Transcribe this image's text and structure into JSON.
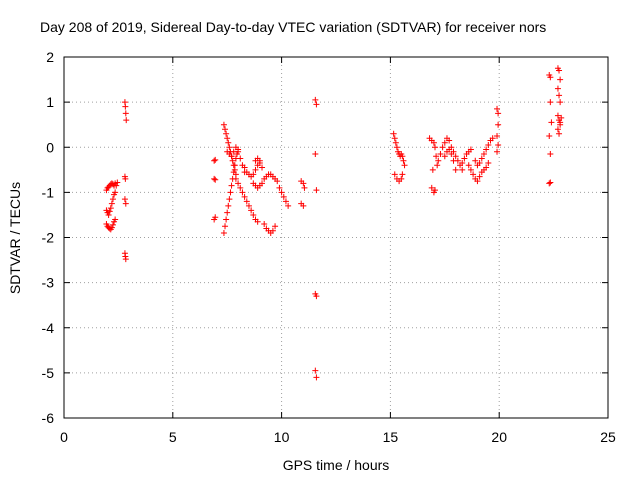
{
  "chart_data": {
    "type": "scatter",
    "title": "Day 208 of 2019, Sidereal Day-to-day VTEC variation (SDTVAR) for receiver nors",
    "xlabel": "GPS time / hours",
    "ylabel": "SDTVAR / TECUs",
    "xlim": [
      0,
      25
    ],
    "ylim": [
      -6,
      2
    ],
    "xticks": [
      0,
      5,
      10,
      15,
      20,
      25
    ],
    "yticks": [
      -6,
      -5,
      -4,
      -3,
      -2,
      -1,
      0,
      1,
      2
    ],
    "xtick_labels": [
      "0",
      "5",
      "10",
      "15",
      "20",
      "25"
    ],
    "ytick_labels": [
      "-6",
      "-5",
      "-4",
      "-3",
      "-2",
      "-1",
      "0",
      "1",
      "2"
    ],
    "grid": true,
    "marker": "plus",
    "color": "#ff0000",
    "series": [
      {
        "name": "SDTVAR",
        "points": [
          [
            1.95,
            -0.95
          ],
          [
            2.0,
            -0.9
          ],
          [
            2.05,
            -0.88
          ],
          [
            2.1,
            -0.85
          ],
          [
            2.15,
            -0.82
          ],
          [
            2.2,
            -0.8
          ],
          [
            2.25,
            -0.82
          ],
          [
            2.3,
            -0.85
          ],
          [
            2.35,
            -0.8
          ],
          [
            1.95,
            -1.4
          ],
          [
            2.0,
            -1.45
          ],
          [
            2.05,
            -1.5
          ],
          [
            2.1,
            -1.42
          ],
          [
            2.15,
            -1.35
          ],
          [
            2.2,
            -1.25
          ],
          [
            2.25,
            -1.15
          ],
          [
            2.3,
            -1.05
          ],
          [
            2.35,
            -1.0
          ],
          [
            2.4,
            -0.85
          ],
          [
            2.45,
            -0.78
          ],
          [
            1.95,
            -1.7
          ],
          [
            2.0,
            -1.75
          ],
          [
            2.05,
            -1.78
          ],
          [
            2.1,
            -1.8
          ],
          [
            2.15,
            -1.82
          ],
          [
            2.2,
            -1.78
          ],
          [
            2.25,
            -1.72
          ],
          [
            2.3,
            -1.65
          ],
          [
            2.35,
            -1.6
          ],
          [
            2.8,
            1.0
          ],
          [
            2.82,
            0.9
          ],
          [
            2.84,
            0.75
          ],
          [
            2.86,
            0.6
          ],
          [
            2.8,
            -0.65
          ],
          [
            2.82,
            -0.7
          ],
          [
            2.8,
            -1.15
          ],
          [
            2.84,
            -1.25
          ],
          [
            2.8,
            -2.35
          ],
          [
            2.82,
            -2.42
          ],
          [
            2.84,
            -2.48
          ],
          [
            6.9,
            -0.3
          ],
          [
            6.95,
            -0.28
          ],
          [
            6.9,
            -0.7
          ],
          [
            6.95,
            -0.72
          ],
          [
            6.9,
            -1.6
          ],
          [
            6.95,
            -1.55
          ],
          [
            7.35,
            0.5
          ],
          [
            7.4,
            0.4
          ],
          [
            7.45,
            0.3
          ],
          [
            7.5,
            0.2
          ],
          [
            7.55,
            0.1
          ],
          [
            7.6,
            0.0
          ],
          [
            7.65,
            -0.1
          ],
          [
            7.7,
            -0.2
          ],
          [
            7.75,
            -0.3
          ],
          [
            7.8,
            -0.4
          ],
          [
            7.85,
            -0.5
          ],
          [
            7.9,
            -0.6
          ],
          [
            7.35,
            -1.9
          ],
          [
            7.4,
            -1.75
          ],
          [
            7.45,
            -1.6
          ],
          [
            7.5,
            -1.45
          ],
          [
            7.55,
            -1.3
          ],
          [
            7.6,
            -1.15
          ],
          [
            7.65,
            -1.0
          ],
          [
            7.7,
            -0.85
          ],
          [
            7.75,
            -0.7
          ],
          [
            7.8,
            -0.55
          ],
          [
            7.85,
            -0.4
          ],
          [
            7.9,
            -0.25
          ],
          [
            7.95,
            -0.15
          ],
          [
            8.0,
            -0.05
          ],
          [
            7.5,
            -0.1
          ],
          [
            7.6,
            -0.15
          ],
          [
            7.7,
            -0.2
          ],
          [
            7.8,
            -0.1
          ],
          [
            7.9,
            0.0
          ],
          [
            8.0,
            -0.1
          ],
          [
            8.1,
            -0.25
          ],
          [
            8.2,
            -0.4
          ],
          [
            8.3,
            -0.55
          ],
          [
            7.9,
            -0.7
          ],
          [
            8.0,
            -0.8
          ],
          [
            8.1,
            -0.9
          ],
          [
            8.2,
            -1.0
          ],
          [
            8.3,
            -1.1
          ],
          [
            8.4,
            -1.2
          ],
          [
            8.5,
            -1.3
          ],
          [
            8.6,
            -1.4
          ],
          [
            8.7,
            -1.5
          ],
          [
            8.8,
            -1.6
          ],
          [
            8.9,
            -1.65
          ],
          [
            8.3,
            -0.45
          ],
          [
            8.4,
            -0.55
          ],
          [
            8.5,
            -0.6
          ],
          [
            8.6,
            -0.65
          ],
          [
            8.7,
            -0.6
          ],
          [
            8.8,
            -0.5
          ],
          [
            8.9,
            -0.4
          ],
          [
            9.0,
            -0.35
          ],
          [
            8.7,
            -0.8
          ],
          [
            8.8,
            -0.85
          ],
          [
            8.9,
            -0.9
          ],
          [
            9.0,
            -0.85
          ],
          [
            9.1,
            -0.8
          ],
          [
            9.2,
            -0.7
          ],
          [
            9.3,
            -0.65
          ],
          [
            9.4,
            -0.6
          ],
          [
            9.5,
            -0.6
          ],
          [
            9.6,
            -0.65
          ],
          [
            9.7,
            -0.7
          ],
          [
            9.8,
            -0.75
          ],
          [
            8.8,
            -0.3
          ],
          [
            8.9,
            -0.25
          ],
          [
            9.0,
            -0.3
          ],
          [
            9.1,
            -0.45
          ],
          [
            9.2,
            -1.7
          ],
          [
            9.3,
            -1.8
          ],
          [
            9.4,
            -1.85
          ],
          [
            9.5,
            -1.9
          ],
          [
            9.6,
            -1.85
          ],
          [
            9.7,
            -1.75
          ],
          [
            9.9,
            -0.9
          ],
          [
            10.0,
            -1.0
          ],
          [
            10.1,
            -1.1
          ],
          [
            10.2,
            -1.2
          ],
          [
            10.3,
            -1.3
          ],
          [
            10.9,
            -0.75
          ],
          [
            11.0,
            -0.8
          ],
          [
            11.05,
            -0.9
          ],
          [
            10.9,
            -1.25
          ],
          [
            11.0,
            -1.3
          ],
          [
            11.55,
            1.05
          ],
          [
            11.6,
            0.95
          ],
          [
            11.55,
            -0.15
          ],
          [
            11.6,
            -0.95
          ],
          [
            11.55,
            -3.25
          ],
          [
            11.6,
            -3.3
          ],
          [
            11.55,
            -4.95
          ],
          [
            11.6,
            -5.1
          ],
          [
            15.15,
            0.3
          ],
          [
            15.2,
            0.2
          ],
          [
            15.25,
            0.1
          ],
          [
            15.3,
            0.0
          ],
          [
            15.35,
            -0.1
          ],
          [
            15.4,
            -0.15
          ],
          [
            15.45,
            -0.2
          ],
          [
            15.5,
            -0.15
          ],
          [
            15.55,
            -0.2
          ],
          [
            15.6,
            -0.3
          ],
          [
            15.65,
            -0.4
          ],
          [
            15.2,
            -0.6
          ],
          [
            15.3,
            -0.7
          ],
          [
            15.4,
            -0.75
          ],
          [
            15.5,
            -0.7
          ],
          [
            15.55,
            -0.6
          ],
          [
            16.8,
            0.2
          ],
          [
            16.9,
            0.15
          ],
          [
            17.0,
            0.1
          ],
          [
            17.05,
            0.0
          ],
          [
            17.1,
            -0.2
          ],
          [
            17.15,
            -0.4
          ],
          [
            16.9,
            -0.9
          ],
          [
            17.0,
            -1.0
          ],
          [
            17.05,
            -0.95
          ],
          [
            16.95,
            -0.5
          ],
          [
            17.2,
            -0.3
          ],
          [
            17.3,
            -0.15
          ],
          [
            17.4,
            0.0
          ],
          [
            17.5,
            0.1
          ],
          [
            17.6,
            0.2
          ],
          [
            17.7,
            0.15
          ],
          [
            17.8,
            0.0
          ],
          [
            17.9,
            -0.1
          ],
          [
            18.0,
            -0.2
          ],
          [
            18.1,
            -0.3
          ],
          [
            18.2,
            -0.4
          ],
          [
            18.3,
            -0.5
          ],
          [
            17.5,
            -0.2
          ],
          [
            17.6,
            -0.1
          ],
          [
            17.7,
            -0.05
          ],
          [
            17.8,
            -0.15
          ],
          [
            17.9,
            -0.3
          ],
          [
            18.0,
            -0.5
          ],
          [
            18.3,
            -0.35
          ],
          [
            18.4,
            -0.25
          ],
          [
            18.5,
            -0.15
          ],
          [
            18.6,
            -0.1
          ],
          [
            18.7,
            -0.05
          ],
          [
            18.6,
            -0.4
          ],
          [
            18.7,
            -0.5
          ],
          [
            18.8,
            -0.6
          ],
          [
            18.9,
            -0.7
          ],
          [
            19.0,
            -0.75
          ],
          [
            19.1,
            -0.65
          ],
          [
            19.2,
            -0.55
          ],
          [
            19.3,
            -0.5
          ],
          [
            19.4,
            -0.45
          ],
          [
            19.5,
            -0.35
          ],
          [
            18.9,
            -0.3
          ],
          [
            19.0,
            -0.4
          ],
          [
            19.1,
            -0.35
          ],
          [
            19.2,
            -0.25
          ],
          [
            19.3,
            -0.15
          ],
          [
            19.4,
            -0.05
          ],
          [
            19.5,
            0.05
          ],
          [
            19.6,
            0.15
          ],
          [
            19.7,
            0.2
          ],
          [
            19.9,
            0.85
          ],
          [
            19.95,
            0.75
          ],
          [
            19.95,
            0.5
          ],
          [
            19.9,
            0.25
          ],
          [
            19.95,
            0.05
          ],
          [
            19.9,
            -0.1
          ],
          [
            22.3,
            1.6
          ],
          [
            22.35,
            1.55
          ],
          [
            22.35,
            1.0
          ],
          [
            22.4,
            0.55
          ],
          [
            22.3,
            0.25
          ],
          [
            22.35,
            -0.15
          ],
          [
            22.3,
            -0.8
          ],
          [
            22.35,
            -0.78
          ],
          [
            22.7,
            1.75
          ],
          [
            22.75,
            1.7
          ],
          [
            22.8,
            1.5
          ],
          [
            22.7,
            1.3
          ],
          [
            22.75,
            1.15
          ],
          [
            22.8,
            1.0
          ],
          [
            22.7,
            0.7
          ],
          [
            22.75,
            0.6
          ],
          [
            22.8,
            0.5
          ],
          [
            22.7,
            0.4
          ],
          [
            22.75,
            0.3
          ],
          [
            22.8,
            0.55
          ],
          [
            22.85,
            0.65
          ]
        ]
      }
    ]
  }
}
